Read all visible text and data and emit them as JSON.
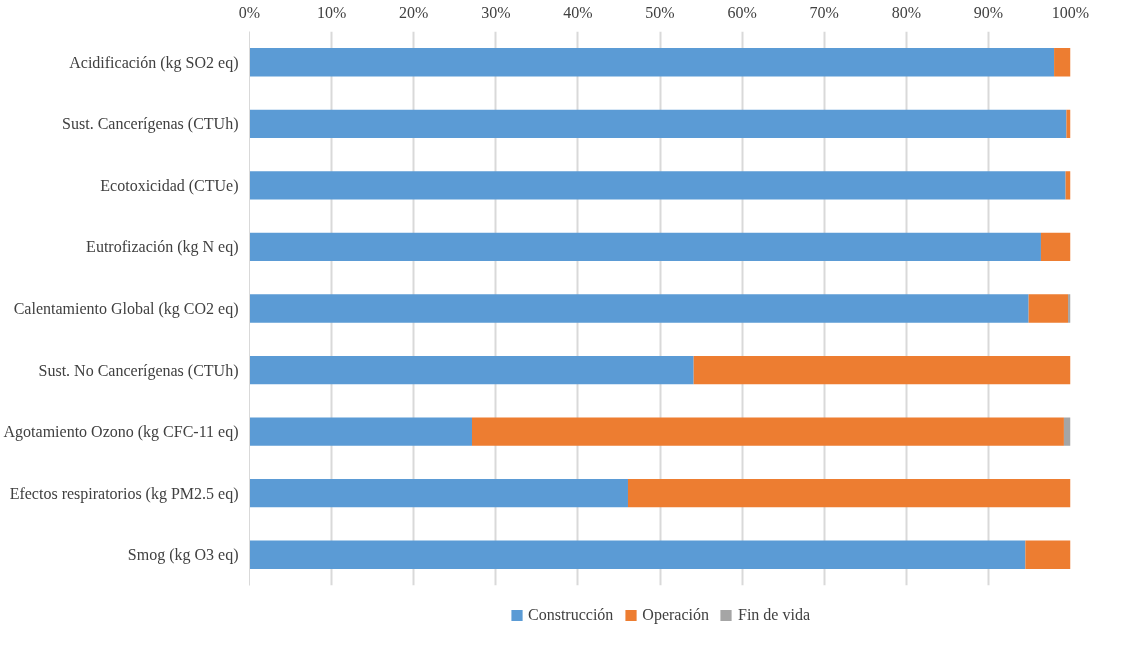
{
  "chart_data": {
    "type": "bar",
    "orientation": "horizontal",
    "stacked": true,
    "categories": [
      "Acidificación (kg SO2 eq)",
      "Sust. Cancerígenas (CTUh)",
      "Ecotoxicidad (CTUe)",
      "Eutrofización (kg N eq)",
      "Calentamiento Global (kg CO2 eq)",
      "Sust. No Cancerígenas (CTUh)",
      "Agotamiento Ozono (kg CFC-11 eq)",
      "Efectos respiratorios (kg PM2.5 eq)",
      "Smog (kg O3 eq)"
    ],
    "series": [
      {
        "name": "Construcción",
        "color": "#5b9bd5",
        "values": [
          98.0,
          99.5,
          99.4,
          96.4,
          94.9,
          54.1,
          27.1,
          46.1,
          94.5
        ]
      },
      {
        "name": "Operación",
        "color": "#ed7d31",
        "values": [
          2.0,
          0.5,
          0.6,
          3.6,
          4.8,
          45.9,
          72.1,
          53.9,
          5.5
        ]
      },
      {
        "name": "Fin de vida",
        "color": "#a5a5a5",
        "values": [
          0,
          0,
          0,
          0,
          0.3,
          0,
          0.8,
          0,
          0
        ]
      }
    ],
    "xlim": [
      0,
      100
    ],
    "xticks": [
      {
        "value": 0,
        "label": "0%"
      },
      {
        "value": 10,
        "label": "10%"
      },
      {
        "value": 20,
        "label": "20%"
      },
      {
        "value": 30,
        "label": "30%"
      },
      {
        "value": 40,
        "label": "40%"
      },
      {
        "value": 50,
        "label": "50%"
      },
      {
        "value": 60,
        "label": "60%"
      },
      {
        "value": 70,
        "label": "70%"
      },
      {
        "value": 80,
        "label": "80%"
      },
      {
        "value": 90,
        "label": "90%"
      },
      {
        "value": 100,
        "label": "100%"
      }
    ],
    "grid": "x",
    "legend": "bottom"
  }
}
